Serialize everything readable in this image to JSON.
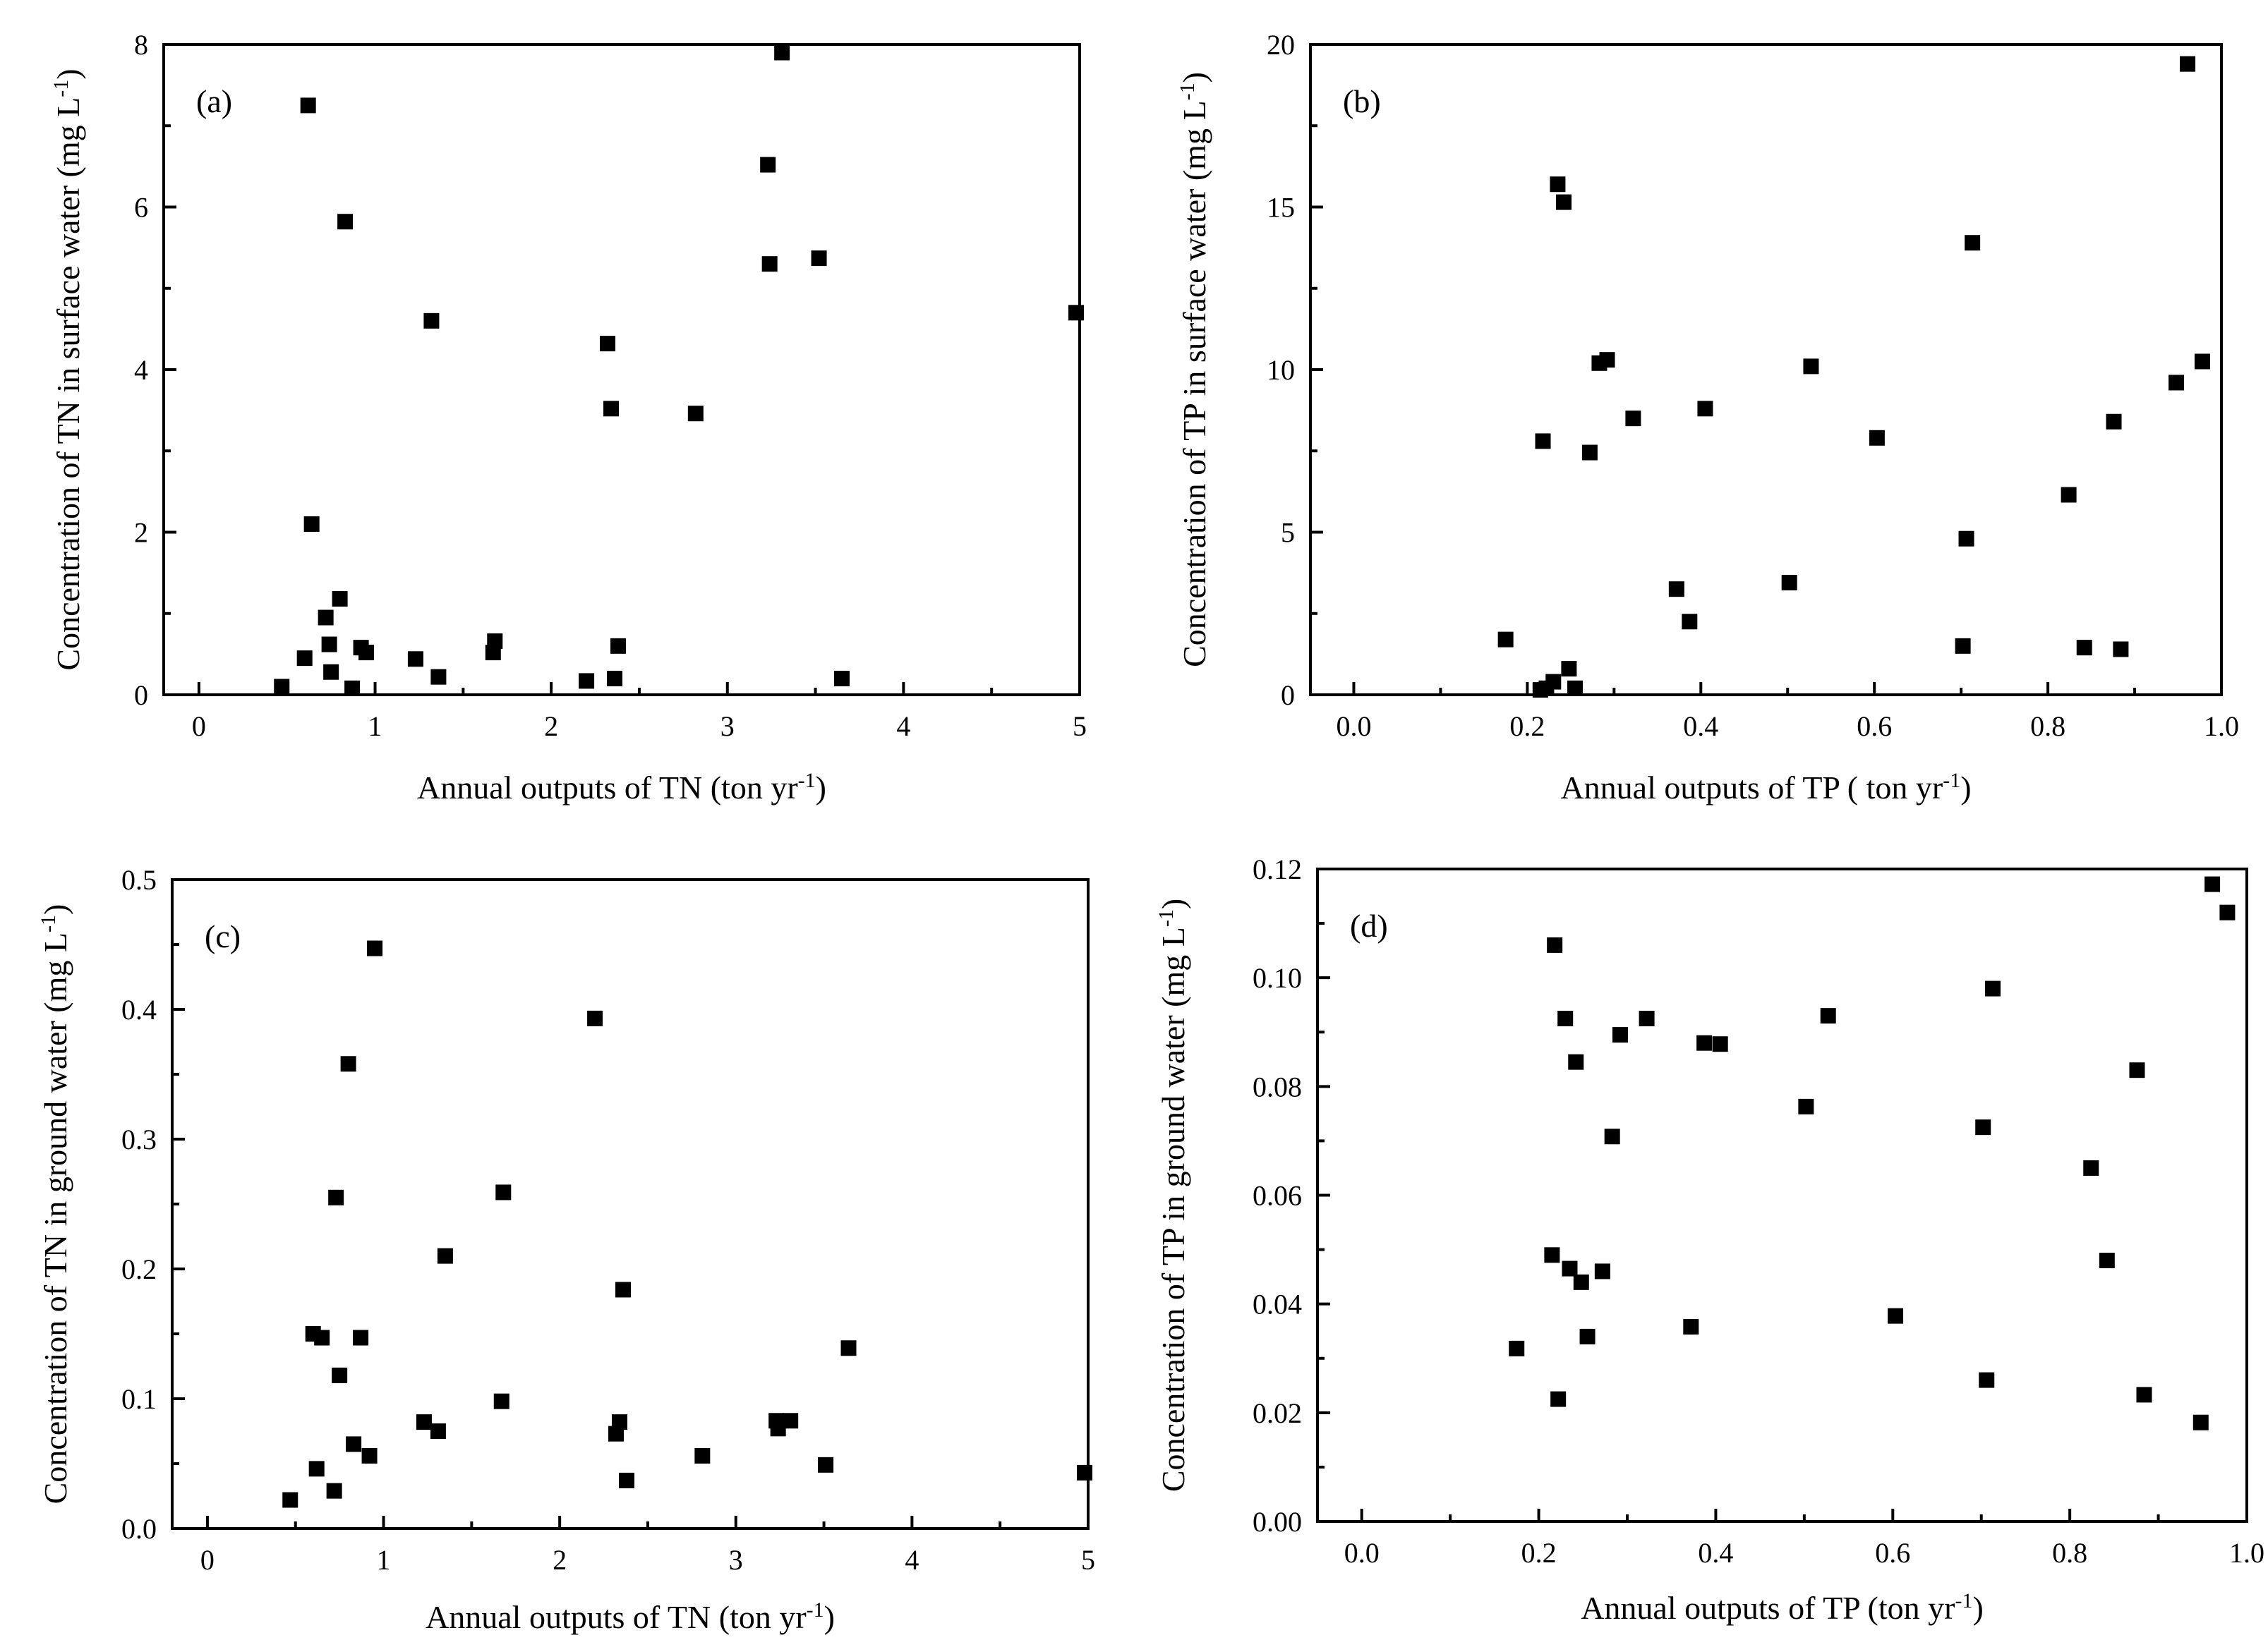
{
  "chart_data": [
    {
      "id": "a",
      "type": "scatter",
      "panel_label": "(a)",
      "xlabel": "Annual outputs of TN (ton yr",
      "xlabel_sup": "-1",
      "xlabel_end": ")",
      "ylabel": "Concentration of TN in surface water (mg L",
      "ylabel_sup": "-1",
      "ylabel_end": ")",
      "xlim": [
        -0.2,
        5
      ],
      "ylim": [
        0,
        8
      ],
      "xticks": [
        0,
        1,
        2,
        3,
        4,
        5
      ],
      "xtick_labels": [
        "0",
        "1",
        "2",
        "3",
        "4",
        "5"
      ],
      "yticks": [
        0,
        2,
        4,
        6,
        8
      ],
      "ytick_labels": [
        "0",
        "2",
        "4",
        "6",
        "8"
      ],
      "marker_color": "#000000",
      "points": [
        {
          "x": 0.47,
          "y": 0.1
        },
        {
          "x": 0.6,
          "y": 0.45
        },
        {
          "x": 0.62,
          "y": 7.25
        },
        {
          "x": 0.64,
          "y": 2.1
        },
        {
          "x": 0.72,
          "y": 0.95
        },
        {
          "x": 0.74,
          "y": 0.62
        },
        {
          "x": 0.75,
          "y": 0.28
        },
        {
          "x": 0.8,
          "y": 1.18
        },
        {
          "x": 0.83,
          "y": 5.82
        },
        {
          "x": 0.87,
          "y": 0.08
        },
        {
          "x": 0.92,
          "y": 0.58
        },
        {
          "x": 0.95,
          "y": 0.52
        },
        {
          "x": 1.23,
          "y": 0.44
        },
        {
          "x": 1.32,
          "y": 4.6
        },
        {
          "x": 1.36,
          "y": 0.22
        },
        {
          "x": 1.67,
          "y": 0.52
        },
        {
          "x": 1.68,
          "y": 0.66
        },
        {
          "x": 2.2,
          "y": 0.17
        },
        {
          "x": 2.32,
          "y": 4.32
        },
        {
          "x": 2.34,
          "y": 3.52
        },
        {
          "x": 2.36,
          "y": 0.2
        },
        {
          "x": 2.38,
          "y": 0.6
        },
        {
          "x": 2.82,
          "y": 3.46
        },
        {
          "x": 3.23,
          "y": 6.52
        },
        {
          "x": 3.24,
          "y": 5.3
        },
        {
          "x": 3.31,
          "y": 7.9
        },
        {
          "x": 3.52,
          "y": 5.37
        },
        {
          "x": 3.65,
          "y": 0.2
        },
        {
          "x": 4.98,
          "y": 4.7
        }
      ]
    },
    {
      "id": "b",
      "type": "scatter",
      "panel_label": "(b)",
      "xlabel": "Annual outputs of TP ( ton yr",
      "xlabel_sup": "-1",
      "xlabel_end": ")",
      "ylabel": "Concentration of TP in surface water (mg L",
      "ylabel_sup": "-1",
      "ylabel_end": ")",
      "xlim": [
        -0.05,
        1.0
      ],
      "ylim": [
        0,
        20
      ],
      "xticks": [
        0.0,
        0.2,
        0.4,
        0.6,
        0.8,
        1.0
      ],
      "xtick_labels": [
        "0.0",
        "0.2",
        "0.4",
        "0.6",
        "0.8",
        "1.0"
      ],
      "yticks": [
        0,
        5,
        10,
        15,
        20
      ],
      "ytick_labels": [
        "0",
        "5",
        "10",
        "15",
        "20"
      ],
      "marker_color": "#000000",
      "points": [
        {
          "x": 0.175,
          "y": 1.7
        },
        {
          "x": 0.215,
          "y": 0.15
        },
        {
          "x": 0.218,
          "y": 7.8
        },
        {
          "x": 0.222,
          "y": 0.2
        },
        {
          "x": 0.23,
          "y": 0.4
        },
        {
          "x": 0.235,
          "y": 15.7
        },
        {
          "x": 0.242,
          "y": 15.15
        },
        {
          "x": 0.248,
          "y": 0.8
        },
        {
          "x": 0.255,
          "y": 0.2
        },
        {
          "x": 0.272,
          "y": 7.45
        },
        {
          "x": 0.283,
          "y": 10.2
        },
        {
          "x": 0.292,
          "y": 10.3
        },
        {
          "x": 0.322,
          "y": 8.5
        },
        {
          "x": 0.372,
          "y": 3.25
        },
        {
          "x": 0.387,
          "y": 2.25
        },
        {
          "x": 0.405,
          "y": 8.8
        },
        {
          "x": 0.502,
          "y": 3.45
        },
        {
          "x": 0.527,
          "y": 10.1
        },
        {
          "x": 0.603,
          "y": 7.9
        },
        {
          "x": 0.702,
          "y": 1.5
        },
        {
          "x": 0.706,
          "y": 4.8
        },
        {
          "x": 0.713,
          "y": 13.9
        },
        {
          "x": 0.824,
          "y": 6.15
        },
        {
          "x": 0.842,
          "y": 1.45
        },
        {
          "x": 0.876,
          "y": 8.4
        },
        {
          "x": 0.884,
          "y": 1.4
        },
        {
          "x": 0.948,
          "y": 9.6
        },
        {
          "x": 0.961,
          "y": 19.4
        },
        {
          "x": 0.978,
          "y": 10.25
        }
      ]
    },
    {
      "id": "c",
      "type": "scatter",
      "panel_label": "(c)",
      "xlabel": "Annual outputs of TN (ton yr",
      "xlabel_sup": "-1",
      "xlabel_end": ")",
      "ylabel": "Concentration of TN in ground water (mg L",
      "ylabel_sup": "-1",
      "ylabel_end": ")",
      "xlim": [
        -0.2,
        5
      ],
      "ylim": [
        0,
        0.5
      ],
      "xticks": [
        0,
        1,
        2,
        3,
        4,
        5
      ],
      "xtick_labels": [
        "0",
        "1",
        "2",
        "3",
        "4",
        "5"
      ],
      "yticks": [
        0,
        0.1,
        0.2,
        0.3,
        0.4,
        0.5
      ],
      "ytick_labels": [
        "0.0",
        "0.1",
        "0.2",
        "0.3",
        "0.4",
        "0.5"
      ],
      "marker_color": "#000000",
      "points": [
        {
          "x": 0.47,
          "y": 0.022
        },
        {
          "x": 0.6,
          "y": 0.15
        },
        {
          "x": 0.62,
          "y": 0.046
        },
        {
          "x": 0.65,
          "y": 0.147
        },
        {
          "x": 0.72,
          "y": 0.029
        },
        {
          "x": 0.73,
          "y": 0.255
        },
        {
          "x": 0.75,
          "y": 0.118
        },
        {
          "x": 0.8,
          "y": 0.358
        },
        {
          "x": 0.83,
          "y": 0.065
        },
        {
          "x": 0.87,
          "y": 0.147
        },
        {
          "x": 0.92,
          "y": 0.056
        },
        {
          "x": 0.95,
          "y": 0.447
        },
        {
          "x": 1.23,
          "y": 0.082
        },
        {
          "x": 1.31,
          "y": 0.075
        },
        {
          "x": 1.35,
          "y": 0.21
        },
        {
          "x": 1.67,
          "y": 0.098
        },
        {
          "x": 1.68,
          "y": 0.259
        },
        {
          "x": 2.2,
          "y": 0.393
        },
        {
          "x": 2.32,
          "y": 0.073
        },
        {
          "x": 2.34,
          "y": 0.082
        },
        {
          "x": 2.36,
          "y": 0.184
        },
        {
          "x": 2.38,
          "y": 0.037
        },
        {
          "x": 2.81,
          "y": 0.056
        },
        {
          "x": 3.23,
          "y": 0.083
        },
        {
          "x": 3.24,
          "y": 0.077
        },
        {
          "x": 3.31,
          "y": 0.083
        },
        {
          "x": 3.51,
          "y": 0.049
        },
        {
          "x": 3.64,
          "y": 0.139
        },
        {
          "x": 4.98,
          "y": 0.043
        }
      ]
    },
    {
      "id": "d",
      "type": "scatter",
      "panel_label": "(d)",
      "xlabel": "Annual outputs of TP (ton yr",
      "xlabel_sup": "-1",
      "xlabel_end": ")",
      "ylabel": "Concentration of TP in ground water (mg L",
      "ylabel_sup": "-1",
      "ylabel_end": ")",
      "xlim": [
        -0.05,
        1.0
      ],
      "ylim": [
        0,
        0.12
      ],
      "xticks": [
        0.0,
        0.2,
        0.4,
        0.6,
        0.8,
        1.0
      ],
      "xtick_labels": [
        "0.0",
        "0.2",
        "0.4",
        "0.6",
        "0.8",
        "1.0"
      ],
      "yticks": [
        0,
        0.02,
        0.04,
        0.06,
        0.08,
        0.1,
        0.12
      ],
      "ytick_labels": [
        "0.00",
        "0.02",
        "0.04",
        "0.06",
        "0.08",
        "0.10",
        "0.12"
      ],
      "marker_color": "#000000",
      "points": [
        {
          "x": 0.175,
          "y": 0.0318
        },
        {
          "x": 0.215,
          "y": 0.049
        },
        {
          "x": 0.218,
          "y": 0.106
        },
        {
          "x": 0.222,
          "y": 0.0225
        },
        {
          "x": 0.23,
          "y": 0.0925
        },
        {
          "x": 0.235,
          "y": 0.0465
        },
        {
          "x": 0.242,
          "y": 0.0845
        },
        {
          "x": 0.248,
          "y": 0.044
        },
        {
          "x": 0.255,
          "y": 0.034
        },
        {
          "x": 0.272,
          "y": 0.046
        },
        {
          "x": 0.283,
          "y": 0.0708
        },
        {
          "x": 0.292,
          "y": 0.0895
        },
        {
          "x": 0.322,
          "y": 0.0925
        },
        {
          "x": 0.372,
          "y": 0.0358
        },
        {
          "x": 0.387,
          "y": 0.088
        },
        {
          "x": 0.405,
          "y": 0.0878
        },
        {
          "x": 0.502,
          "y": 0.0763
        },
        {
          "x": 0.527,
          "y": 0.093
        },
        {
          "x": 0.603,
          "y": 0.0378
        },
        {
          "x": 0.702,
          "y": 0.0725
        },
        {
          "x": 0.706,
          "y": 0.026
        },
        {
          "x": 0.713,
          "y": 0.098
        },
        {
          "x": 0.824,
          "y": 0.065
        },
        {
          "x": 0.842,
          "y": 0.048
        },
        {
          "x": 0.876,
          "y": 0.083
        },
        {
          "x": 0.884,
          "y": 0.0233
        },
        {
          "x": 0.948,
          "y": 0.0182
        },
        {
          "x": 0.961,
          "y": 0.1172
        },
        {
          "x": 0.978,
          "y": 0.112
        }
      ]
    }
  ]
}
